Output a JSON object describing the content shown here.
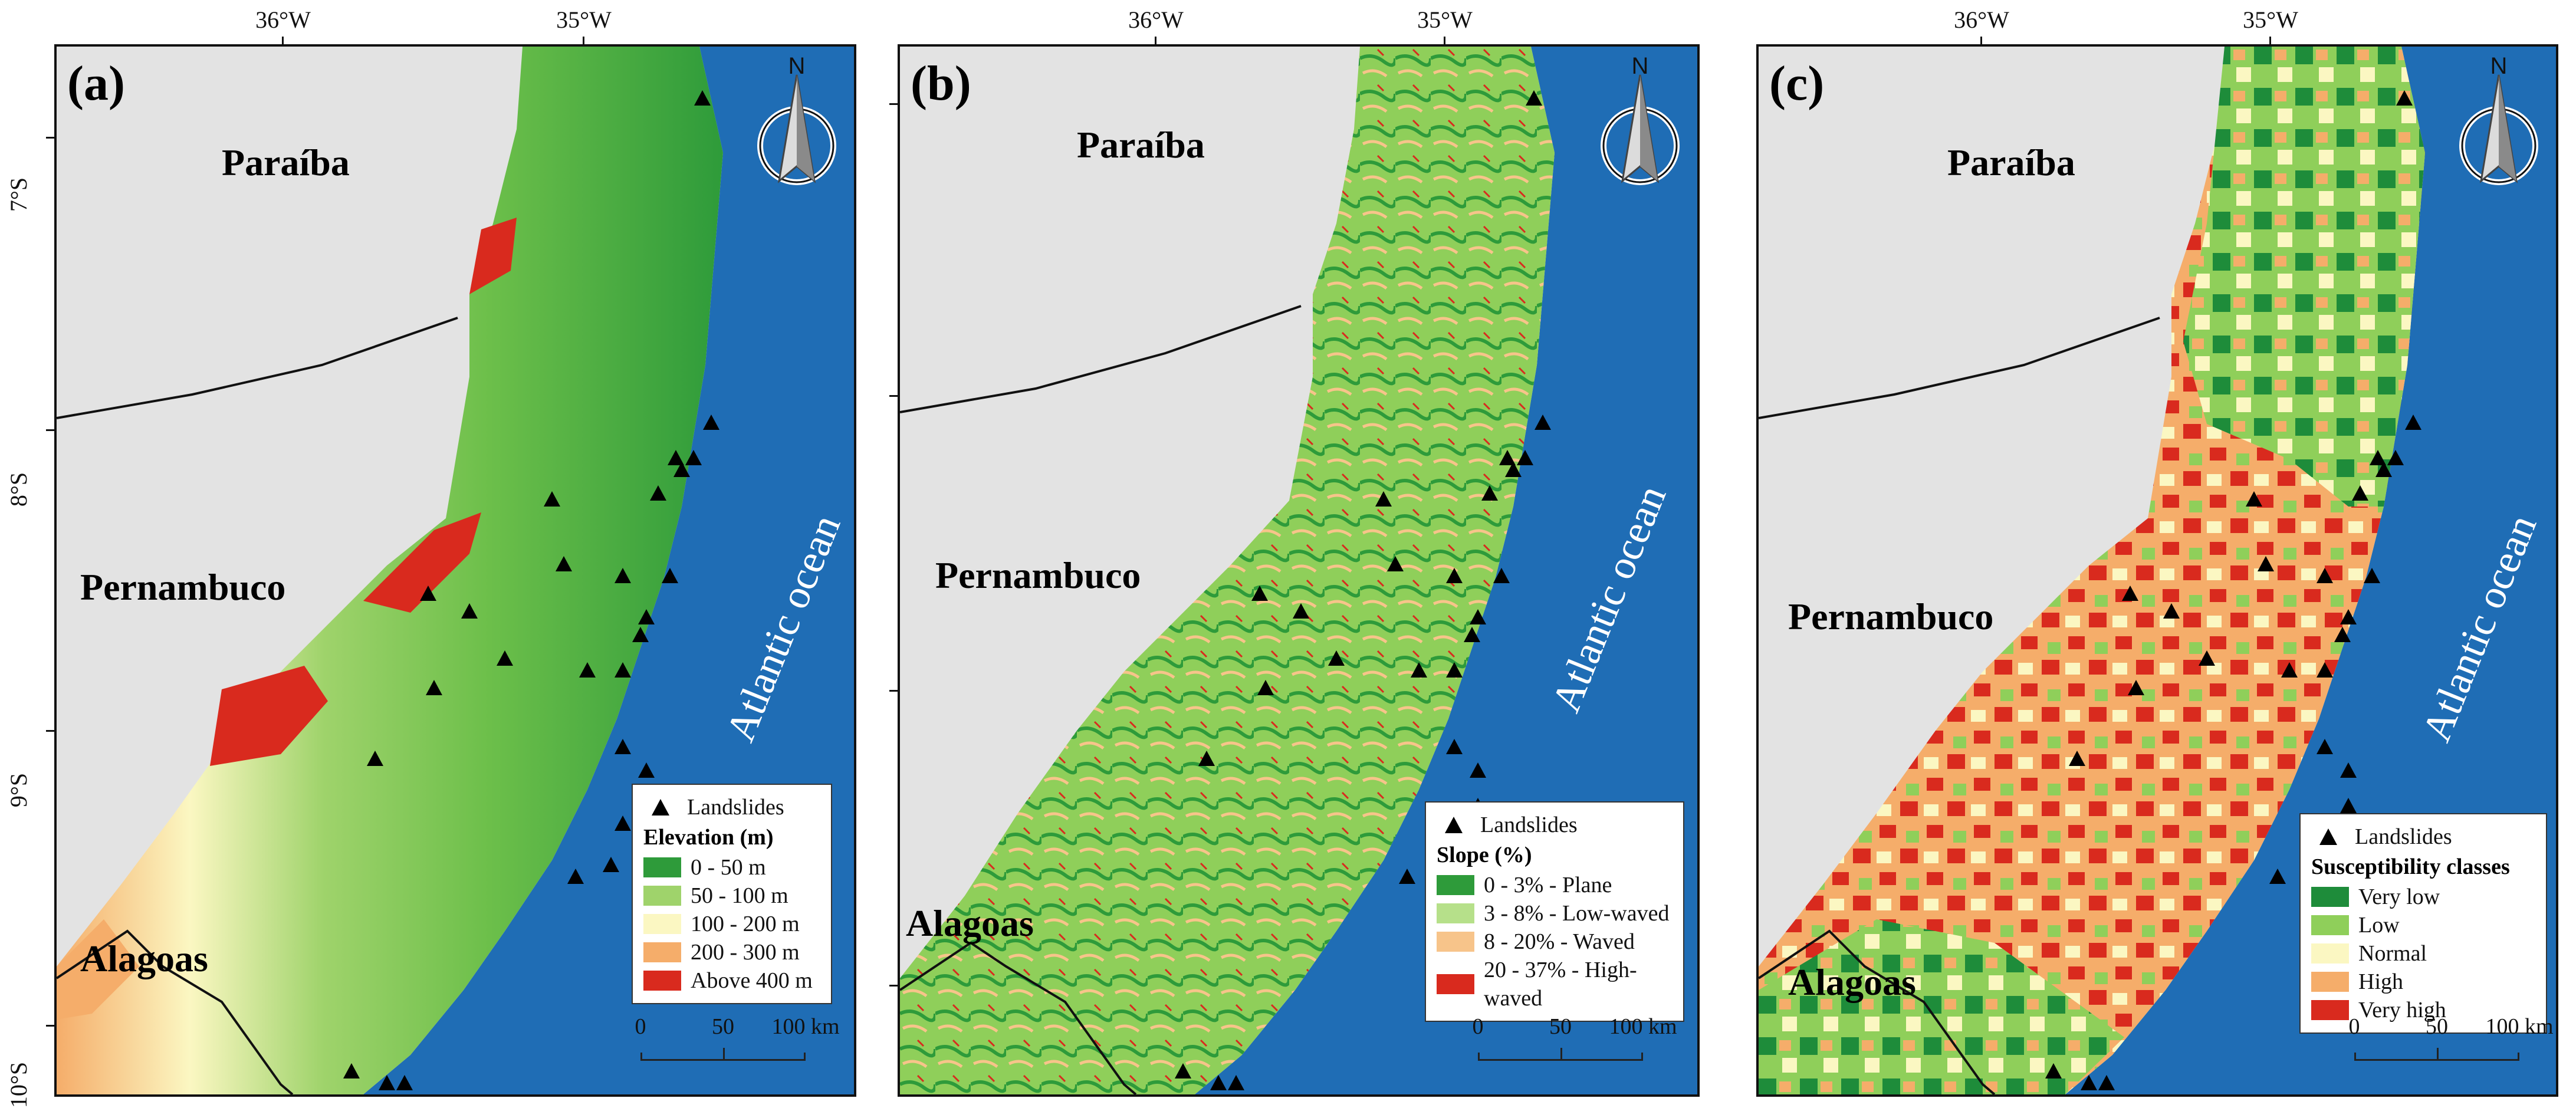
{
  "axes": {
    "lon_labels": [
      "36°W",
      "35°W"
    ],
    "lat_labels": [
      "7°S",
      "8°S",
      "9°S",
      "10°S"
    ]
  },
  "states": {
    "paraiba": "Paraíba",
    "pernambuco": "Pernambuco",
    "alagoas": "Alagoas"
  },
  "ocean_label": "Atlantic ocean",
  "north_label": "N",
  "scale": {
    "ticks": [
      "0",
      "50",
      "100 km"
    ]
  },
  "colors": {
    "ocean": "#1f6db5",
    "land_outside": "#e3e3e3",
    "border": "#111111"
  },
  "landslides_label": "Landslides",
  "panels": [
    {
      "letter": "(a)",
      "legend_title": "Elevation (m)",
      "classes": [
        {
          "label": "0 - 50 m",
          "color": "#2e9b3a"
        },
        {
          "label": "50 - 100 m",
          "color": "#9fd36b"
        },
        {
          "label": "100 - 200 m",
          "color": "#fbf7c2"
        },
        {
          "label": "200 - 300 m",
          "color": "#f5ad6a"
        },
        {
          "label": "Above 400 m",
          "color": "#d92a1e"
        }
      ]
    },
    {
      "letter": "(b)",
      "legend_title": "Slope (%)",
      "classes": [
        {
          "label": "0 - 3% - Plane",
          "color": "#2e9b3a"
        },
        {
          "label": "3 - 8% - Low-waved",
          "color": "#b6e08a"
        },
        {
          "label": "8 - 20% - Waved",
          "color": "#f7c48a"
        },
        {
          "label": "20 - 37% - High-waved",
          "color": "#d92a1e"
        }
      ]
    },
    {
      "letter": "(c)",
      "legend_title": "Susceptibility classes",
      "classes": [
        {
          "label": "Very low",
          "color": "#1e8c3a"
        },
        {
          "label": "Low",
          "color": "#8fcf5a"
        },
        {
          "label": "Normal",
          "color": "#fbf7c2"
        },
        {
          "label": "High",
          "color": "#f5ad6a"
        },
        {
          "label": "Very high",
          "color": "#d92a1e"
        }
      ]
    }
  ]
}
